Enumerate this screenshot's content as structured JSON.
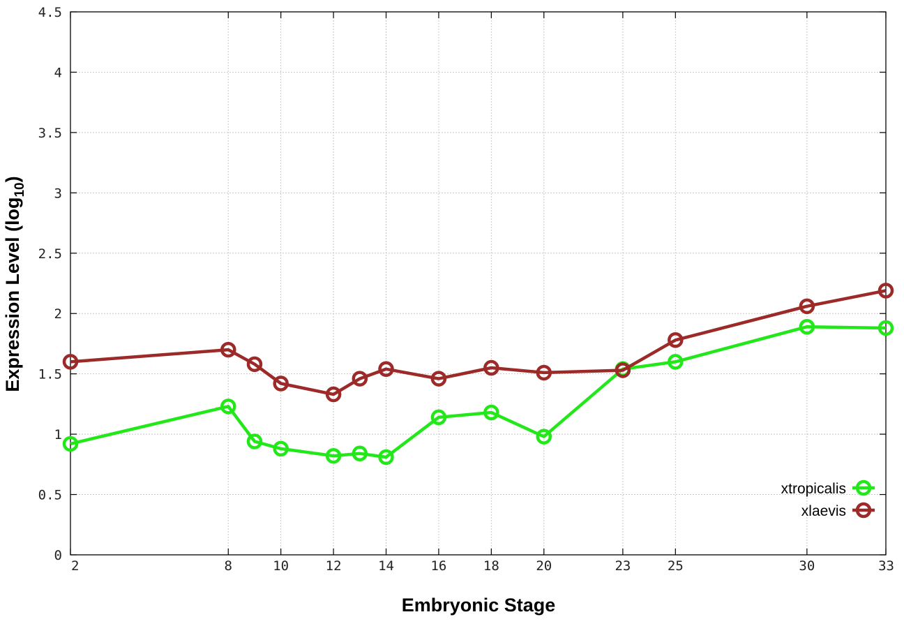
{
  "chart_data": {
    "type": "line",
    "xlabel": "Embryonic Stage",
    "ylabel_main": "Expression Level (log",
    "ylabel_sub": "10",
    "ylabel_close": ")",
    "xlim": [
      2,
      33
    ],
    "ylim": [
      0,
      4.5
    ],
    "x_ticks": [
      2,
      8,
      10,
      12,
      14,
      16,
      18,
      20,
      23,
      25,
      30,
      33
    ],
    "x_tick_labels": [
      "2",
      "8",
      "10",
      "12",
      "14",
      "16",
      "18",
      "20",
      "23",
      "25",
      "30",
      "33"
    ],
    "y_ticks": [
      0,
      0.5,
      1,
      1.5,
      2,
      2.5,
      3,
      3.5,
      4,
      4.5
    ],
    "y_tick_labels": [
      "0",
      "0.5",
      "1",
      "1.5",
      "2",
      "2.5",
      "3",
      "3.5",
      "4",
      "4.5"
    ],
    "grid": true,
    "legend_position": "bottom-right",
    "x": [
      2,
      8,
      9,
      10,
      12,
      13,
      14,
      16,
      18,
      20,
      23,
      25,
      30,
      33
    ],
    "series": [
      {
        "name": "xtropicalis",
        "color": "#22e81a",
        "values": [
          0.92,
          1.23,
          0.94,
          0.88,
          0.82,
          0.84,
          0.81,
          1.14,
          1.18,
          0.98,
          1.54,
          1.6,
          1.89,
          1.88
        ]
      },
      {
        "name": "xlaevis",
        "color": "#9b2a28",
        "values": [
          1.6,
          1.7,
          1.58,
          1.42,
          1.33,
          1.46,
          1.54,
          1.46,
          1.55,
          1.51,
          1.53,
          1.78,
          2.06,
          2.19
        ]
      }
    ]
  }
}
